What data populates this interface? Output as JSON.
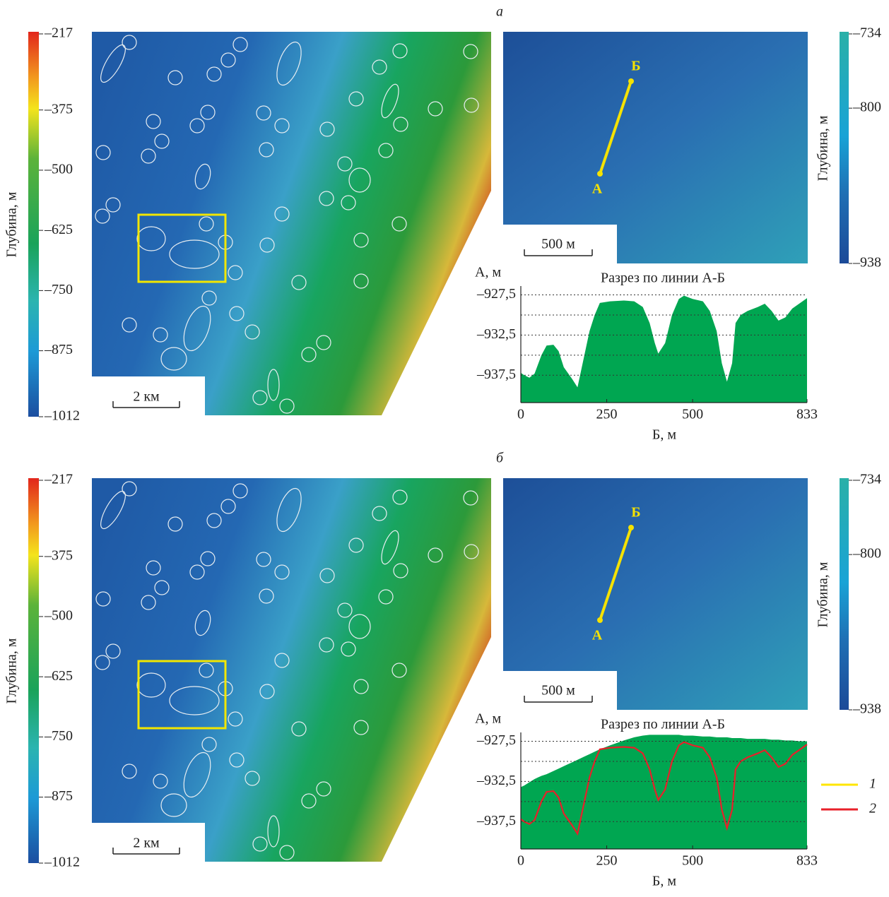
{
  "panels": [
    {
      "label": "а",
      "depth_scale": {
        "title": "Глубина, м",
        "ticks": [
          {
            "value": -217,
            "label": "–217"
          },
          {
            "value": -375,
            "label": "–375"
          },
          {
            "value": -500,
            "label": "–500"
          },
          {
            "value": -625,
            "label": "–625"
          },
          {
            "value": -750,
            "label": "–750"
          },
          {
            "value": -875,
            "label": "–875"
          },
          {
            "value": -1012,
            "label": "–1012"
          }
        ]
      },
      "scale_bar": "2 км",
      "inset": {
        "depth_scale": {
          "title": "Глубина, м",
          "ticks": [
            {
              "value": -734,
              "label": "–734"
            },
            {
              "value": -800,
              "label": "–800"
            },
            {
              "value": -938,
              "label": "–938"
            }
          ]
        },
        "scale_bar": "500 м",
        "point_start": "А",
        "point_end": "Б"
      }
    },
    {
      "label": "б",
      "depth_scale": {
        "title": "Глубина, м",
        "ticks": [
          {
            "value": -217,
            "label": "–217"
          },
          {
            "value": -375,
            "label": "–375"
          },
          {
            "value": -500,
            "label": "–500"
          },
          {
            "value": -625,
            "label": "–625"
          },
          {
            "value": -750,
            "label": "–750"
          },
          {
            "value": -875,
            "label": "–875"
          },
          {
            "value": -1012,
            "label": "–1012"
          }
        ]
      },
      "scale_bar": "2 км",
      "inset": {
        "depth_scale": {
          "title": "Глубина, м",
          "ticks": [
            {
              "value": -734,
              "label": "–734"
            },
            {
              "value": -800,
              "label": "–800"
            },
            {
              "value": -938,
              "label": "–938"
            }
          ]
        },
        "scale_bar": "500 м",
        "point_start": "А",
        "point_end": "Б"
      }
    }
  ],
  "chart_data": [
    {
      "type": "area",
      "title": "Разрез по линии А-Б",
      "x_label": "Б, м",
      "y_label": "А, м",
      "x": [
        0,
        10,
        25,
        40,
        60,
        75,
        95,
        110,
        125,
        150,
        165,
        185,
        200,
        215,
        230,
        260,
        300,
        330,
        355,
        375,
        390,
        400,
        420,
        440,
        460,
        475,
        500,
        530,
        550,
        570,
        585,
        600,
        615,
        625,
        640,
        660,
        690,
        710,
        730,
        750,
        770,
        790,
        810,
        833
      ],
      "series": [
        {
          "color": "#00a651",
          "values": [
            -937.2,
            -937.5,
            -937.8,
            -937.3,
            -935,
            -933.8,
            -933.7,
            -934.5,
            -936.5,
            -938,
            -939,
            -935,
            -932,
            -930,
            -928.5,
            -928.3,
            -928.2,
            -928.3,
            -929,
            -931,
            -933.5,
            -934.8,
            -933.5,
            -930,
            -928,
            -927.6,
            -928,
            -928.3,
            -929.5,
            -932,
            -936,
            -938.3,
            -936,
            -931,
            -930,
            -929.5,
            -929,
            -928.6,
            -929.5,
            -930.7,
            -930.3,
            -929.2,
            -928.6,
            -927.9
          ]
        }
      ],
      "xlim": [
        0,
        833
      ],
      "xticks": [
        0,
        250,
        500,
        833
      ],
      "ylim": [
        -940.9,
        -926.4
      ],
      "yticks": [
        {
          "value": -927.5,
          "label": "–927,5"
        },
        {
          "value": -932.5,
          "label": "–932,5"
        },
        {
          "value": -937.5,
          "label": "–937,5"
        }
      ],
      "ygrid": [
        -927.5,
        -930,
        -932.5,
        -935,
        -937.5
      ]
    },
    {
      "type": "area",
      "title": "Разрез по линии А-Б",
      "x_label": "Б, м",
      "y_label": "А, м",
      "x": [
        0,
        10,
        25,
        40,
        60,
        75,
        95,
        110,
        125,
        150,
        165,
        185,
        200,
        215,
        230,
        260,
        300,
        330,
        355,
        375,
        390,
        400,
        420,
        440,
        460,
        475,
        500,
        530,
        550,
        570,
        585,
        600,
        615,
        625,
        640,
        660,
        690,
        710,
        730,
        750,
        770,
        790,
        810,
        833
      ],
      "series": [
        {
          "name": "1",
          "color": "#ffe600",
          "fill": "#00a651",
          "values": [
            -933.2,
            -933,
            -932.6,
            -932.2,
            -931.8,
            -931.6,
            -931.2,
            -930.9,
            -930.6,
            -930.1,
            -929.8,
            -929.4,
            -929.1,
            -928.8,
            -928.5,
            -928,
            -927.4,
            -927,
            -926.8,
            -926.7,
            -926.7,
            -926.7,
            -926.7,
            -926.7,
            -926.7,
            -926.8,
            -926.8,
            -926.9,
            -926.9,
            -927,
            -927,
            -927,
            -927.1,
            -927.1,
            -927.1,
            -927.2,
            -927.2,
            -927.2,
            -927.3,
            -927.3,
            -927.4,
            -927.4,
            -927.5,
            -927.5
          ]
        },
        {
          "name": "2",
          "color": "#e8202a",
          "values": [
            -937.2,
            -937.5,
            -937.8,
            -937.3,
            -935,
            -933.8,
            -933.7,
            -934.5,
            -936.5,
            -938,
            -939,
            -935,
            -932,
            -930,
            -928.5,
            -928.3,
            -928.2,
            -928.3,
            -929,
            -931,
            -933.5,
            -934.8,
            -933.5,
            -930,
            -928,
            -927.6,
            -928,
            -928.3,
            -929.5,
            -932,
            -936,
            -938.3,
            -936,
            -931,
            -930,
            -929.5,
            -929,
            -928.6,
            -929.5,
            -930.7,
            -930.3,
            -929.2,
            -928.6,
            -927.9
          ]
        }
      ],
      "xlim": [
        0,
        833
      ],
      "xticks": [
        0,
        250,
        500,
        833
      ],
      "ylim": [
        -940.9,
        -926.4
      ],
      "yticks": [
        {
          "value": -927.5,
          "label": "–927,5"
        },
        {
          "value": -932.5,
          "label": "–932,5"
        },
        {
          "value": -937.5,
          "label": "–937,5"
        }
      ],
      "ygrid": [
        -927.5,
        -930,
        -932.5,
        -935,
        -937.5
      ]
    }
  ]
}
